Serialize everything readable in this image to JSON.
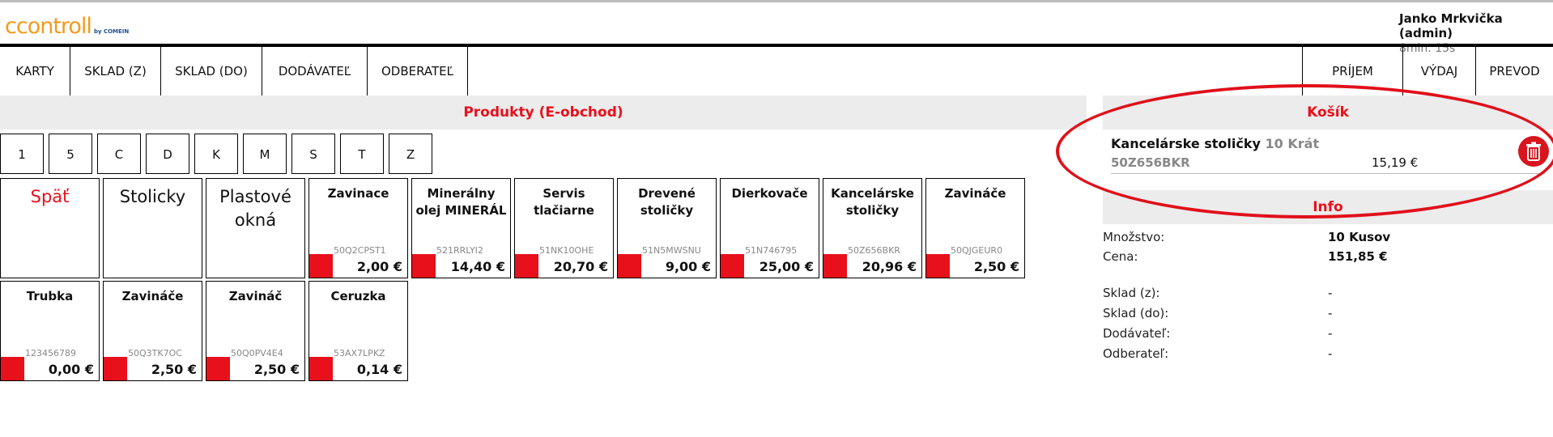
{
  "header": {
    "logo_text": "ccontroll",
    "logo_sub": "by COMEIN",
    "user_name": "Janko Mrkvička (admin)",
    "timer": "8min. 15s"
  },
  "nav": {
    "left": [
      "KARTY",
      "SKLAD (Z)",
      "SKLAD (DO)",
      "DODÁVATEĽ",
      "ODBERATEĽ"
    ],
    "right": [
      "PRÍJEM",
      "VÝDAJ",
      "PREVOD"
    ]
  },
  "products": {
    "title": "Produkty (E-obchod)",
    "letters": [
      "1",
      "5",
      "C",
      "D",
      "K",
      "M",
      "S",
      "T",
      "Z"
    ],
    "categories": [
      "Späť",
      "Stolicky",
      "Plastové okná"
    ],
    "items": [
      {
        "name": "Zavinace",
        "code": "50Q2CPST1",
        "price": "2,00 €"
      },
      {
        "name": "Minerálny olej MINERÁL",
        "code": "521RRLYI2",
        "price": "14,40 €"
      },
      {
        "name": "Servis tlačiarne",
        "code": "51NK10OHE",
        "price": "20,70 €"
      },
      {
        "name": "Drevené stoličky",
        "code": "51N5MWSNU",
        "price": "9,00 €"
      },
      {
        "name": "Dierkovače",
        "code": "51N746795",
        "price": "25,00 €"
      },
      {
        "name": "Kancelárske stoličky",
        "code": "50Z656BKR",
        "price": "20,96 €"
      },
      {
        "name": "Zavináče",
        "code": "50QJGEUR0",
        "price": "2,50 €"
      },
      {
        "name": "Trubka",
        "code": "123456789",
        "price": "0,00 €"
      },
      {
        "name": "Zavináče",
        "code": "50Q3TK7OC",
        "price": "2,50 €"
      },
      {
        "name": "Zavináč",
        "code": "50Q0PV4E4",
        "price": "2,50 €"
      },
      {
        "name": "Ceruzka",
        "code": "53AX7LPKZ",
        "price": "0,14 €"
      }
    ]
  },
  "cart": {
    "title": "Košík",
    "item": {
      "name": "Kancelárske stoličky",
      "qty": "10 Krát",
      "code": "50Z656BKR",
      "price": "15,19 €"
    }
  },
  "info": {
    "title": "Info",
    "rows": [
      {
        "label": "Množstvo:",
        "value": "10 Kusov"
      },
      {
        "label": "Cena:",
        "value": "151,85 €"
      },
      {
        "label": "Sklad (z):",
        "value": "-"
      },
      {
        "label": "Sklad (do):",
        "value": "-"
      },
      {
        "label": "Dodávateľ:",
        "value": "-"
      },
      {
        "label": "Odberateľ:",
        "value": "-"
      }
    ]
  },
  "colors": {
    "accent": "#e8101b",
    "logo": "#f39a1c",
    "swatch": "#e8101b"
  }
}
